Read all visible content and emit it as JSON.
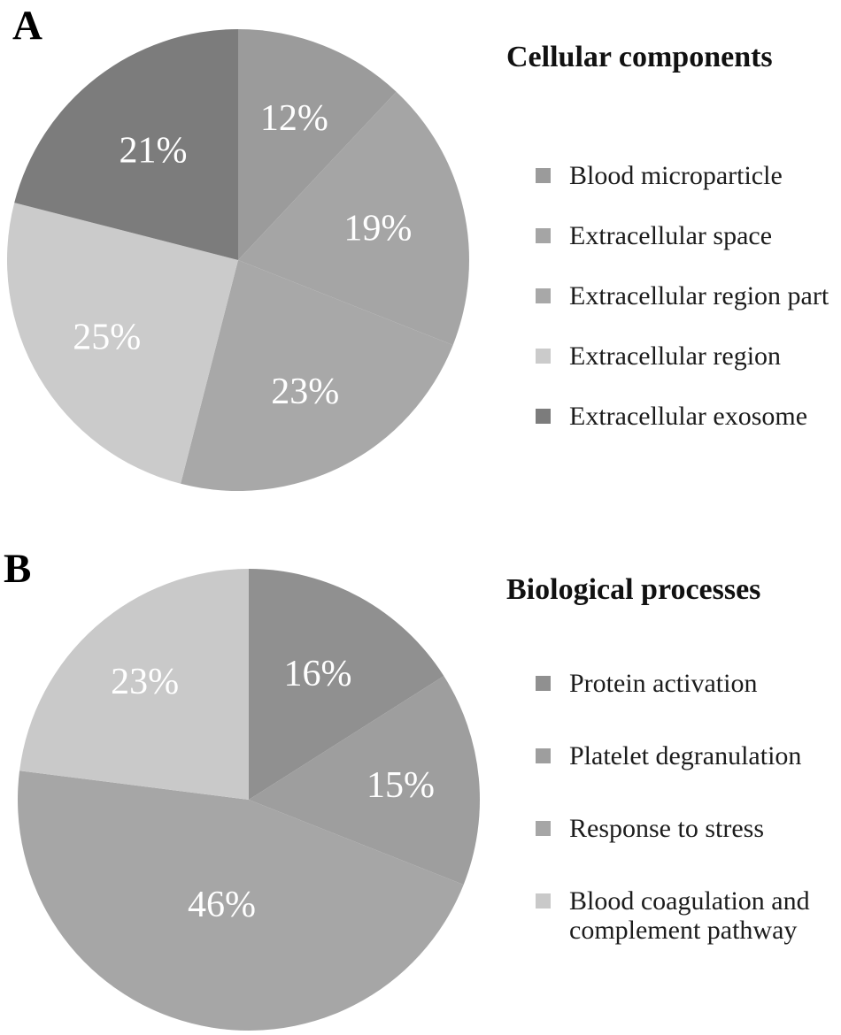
{
  "figure": {
    "background_color": "#ffffff",
    "percent_label_color": "#ffffff",
    "text_color": "#1c1c1c"
  },
  "chart_data": [
    {
      "type": "pie",
      "panel_label": "A",
      "title": "Cellular components",
      "slices": [
        {
          "label": "Blood microparticle",
          "value": 12,
          "display": "12%",
          "color": "#9b9b9b"
        },
        {
          "label": "Extracellular space",
          "value": 19,
          "display": "19%",
          "color": "#a5a5a5"
        },
        {
          "label": "Extracellular region part",
          "value": 23,
          "display": "23%",
          "color": "#a8a8a8"
        },
        {
          "label": "Extracellular region",
          "value": 25,
          "display": "25%",
          "color": "#cbcbcb"
        },
        {
          "label": "Extracellular exosome",
          "value": 21,
          "display": "21%",
          "color": "#7c7c7c"
        }
      ],
      "layout": {
        "start_angle_deg": 0,
        "direction": "clockwise",
        "legend_position": "right",
        "label_radius_frac": [
          0.66,
          0.62,
          0.64,
          0.66,
          0.6
        ]
      }
    },
    {
      "type": "pie",
      "panel_label": "B",
      "title": "Biological processes",
      "slices": [
        {
          "label": "Protein activation",
          "value": 16,
          "display": "16%",
          "color": "#909090"
        },
        {
          "label": "Platelet degranulation",
          "value": 15,
          "display": "15%",
          "color": "#9e9e9e"
        },
        {
          "label": "Response to stress",
          "value": 46,
          "display": "46%",
          "color": "#a6a6a6"
        },
        {
          "label": "Blood coagulation and complement pathway",
          "value": 23,
          "display": "23%",
          "color": "#c9c9c9"
        }
      ],
      "layout": {
        "start_angle_deg": 0,
        "direction": "clockwise",
        "legend_position": "right",
        "label_radius_frac": [
          0.62,
          0.66,
          0.47,
          0.68
        ]
      }
    }
  ]
}
